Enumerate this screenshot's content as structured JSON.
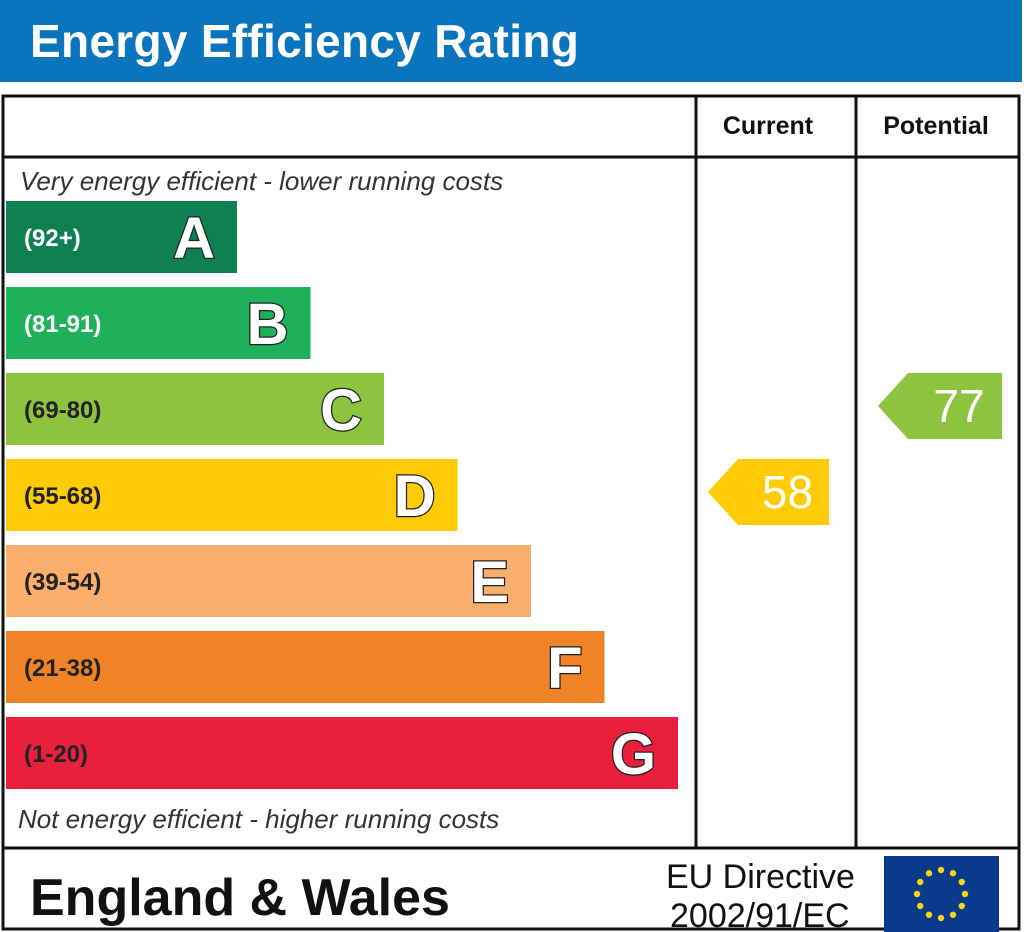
{
  "title": "Energy Efficiency Rating",
  "columns": {
    "current": "Current",
    "potential": "Potential"
  },
  "top_note": "Very energy efficient - lower running costs",
  "bottom_note": "Not energy efficient - higher running costs",
  "footer": {
    "region": "England & Wales",
    "directive_line1": "EU Directive",
    "directive_line2": "2002/91/EC"
  },
  "colors": {
    "title_bar": "#0a74bd",
    "A": "#0f8150",
    "B": "#1fb05a",
    "C": "#8cc43f",
    "D": "#fecb05",
    "E": "#f9ae6b",
    "F": "#f08325",
    "G": "#e8203b",
    "eu_flag": "#0a3a8c",
    "eu_stars": "#f7d60e"
  },
  "chart_data": {
    "type": "bar",
    "categories": [
      "A",
      "B",
      "C",
      "D",
      "E",
      "F",
      "G"
    ],
    "bands": [
      {
        "letter": "A",
        "range": "(92+)"
      },
      {
        "letter": "B",
        "range": "(81-91)"
      },
      {
        "letter": "C",
        "range": "(69-80)"
      },
      {
        "letter": "D",
        "range": "(55-68)"
      },
      {
        "letter": "E",
        "range": "(39-54)"
      },
      {
        "letter": "F",
        "range": "(21-38)"
      },
      {
        "letter": "G",
        "range": "(1-20)"
      }
    ],
    "current": {
      "value": 58,
      "band": "D"
    },
    "potential": {
      "value": 77,
      "band": "C"
    }
  }
}
